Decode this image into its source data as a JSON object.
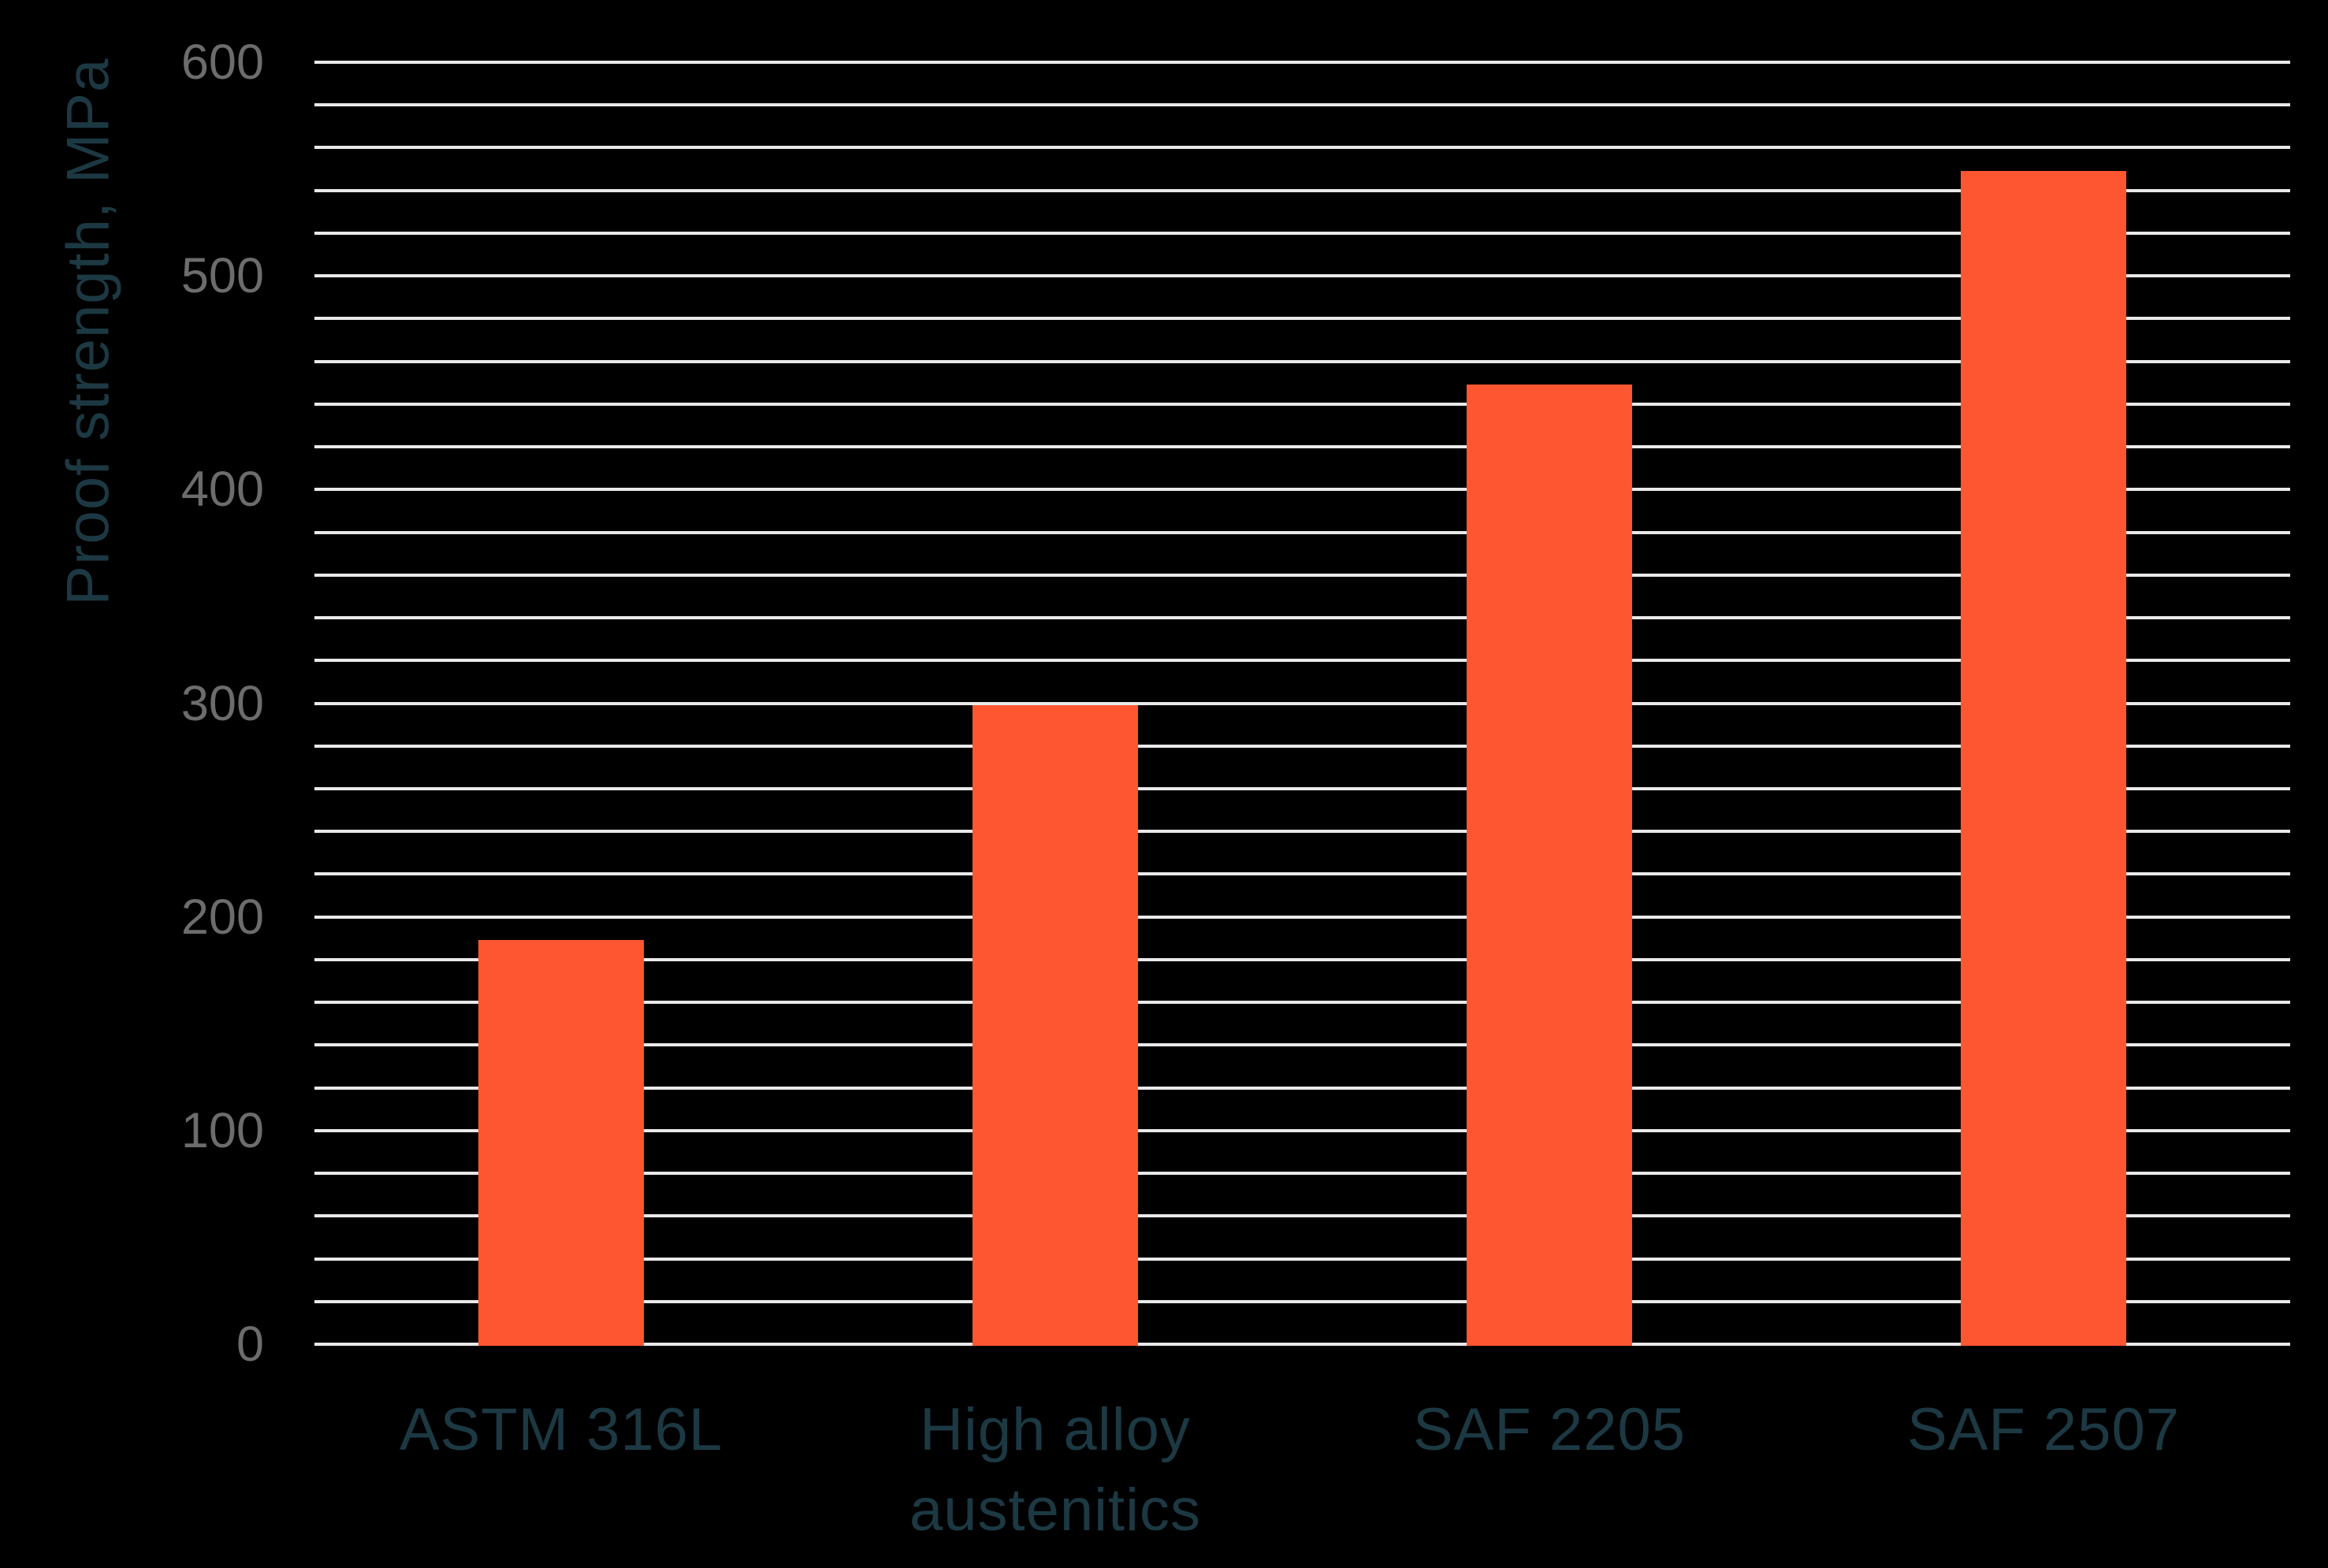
{
  "chart_data": {
    "type": "bar",
    "title": "",
    "ylabel": "Proof strength, MPa",
    "xlabel": "",
    "categories": [
      "ASTM 316L",
      "High alloy austenitics",
      "SAF 2205",
      "SAF 2507"
    ],
    "values": [
      190,
      300,
      450,
      550
    ],
    "ylim": [
      0,
      600
    ],
    "yticks": [
      0,
      100,
      200,
      300,
      400,
      500,
      600
    ],
    "minor_gridline_step": 20,
    "grid": "horizontal-minor-on",
    "legend_position": "none"
  },
  "colors": {
    "background": "#000000",
    "bar": "#FF5632",
    "gridline": "#E9E9E9",
    "tick_label": "#6C6C6C",
    "category_label": "#1C3943",
    "axis_title": "#1C3943"
  }
}
